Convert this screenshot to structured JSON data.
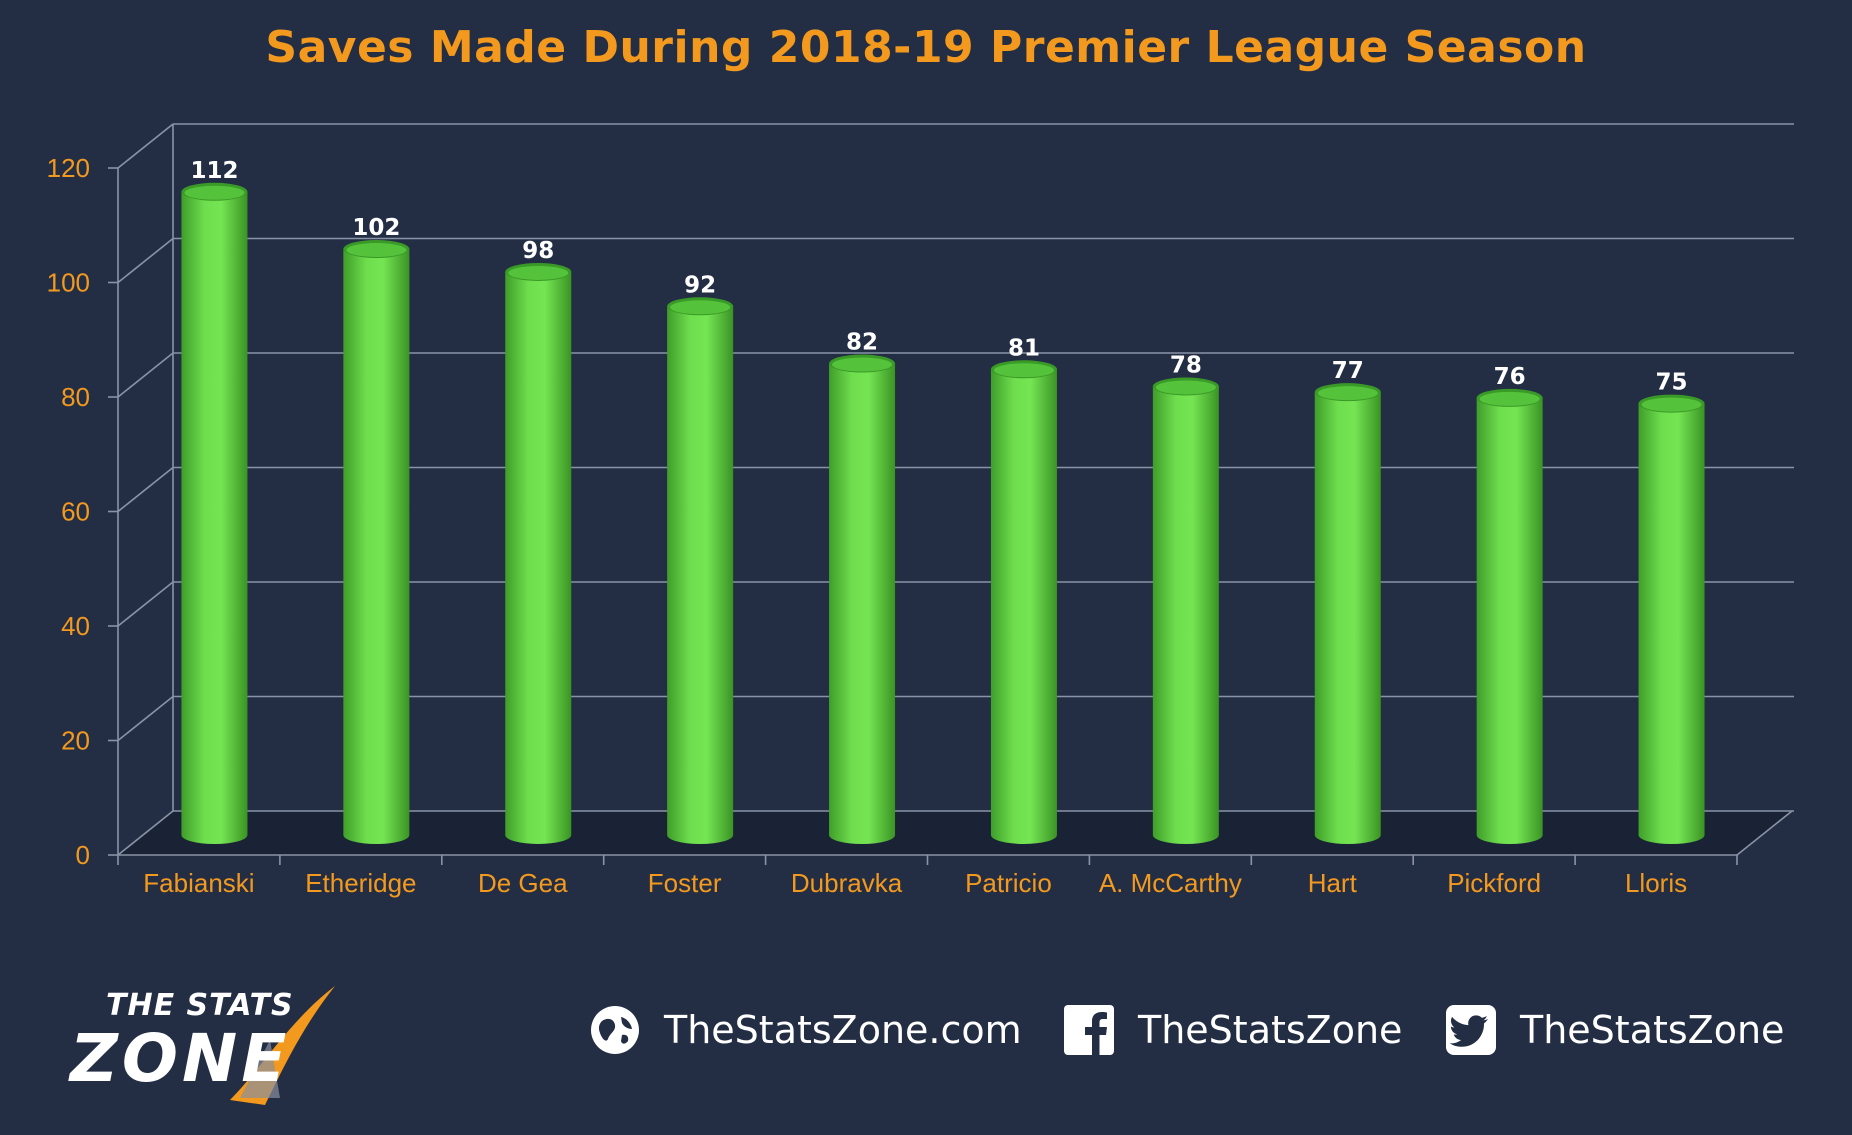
{
  "chart_data": {
    "type": "bar",
    "title": "Saves Made During 2018-19 Premier League Season",
    "categories": [
      "Fabianski",
      "Etheridge",
      "De Gea",
      "Foster",
      "Dubravka",
      "Patricio",
      "A. McCarthy",
      "Hart",
      "Pickford",
      "Lloris"
    ],
    "values": [
      112,
      102,
      98,
      92,
      82,
      81,
      78,
      77,
      76,
      75
    ],
    "data_labels": [
      "112",
      "102",
      "98",
      "92",
      "82",
      "81",
      "78",
      "77",
      "76",
      "75"
    ],
    "yticks": [
      "0",
      "20",
      "40",
      "60",
      "80",
      "100",
      "120"
    ],
    "ylim": [
      0,
      120
    ],
    "xlabel": "",
    "ylabel": "",
    "grid": true,
    "style": "3d-cylinder",
    "colors": {
      "background": "#232e45",
      "bar": "#66d648",
      "bar_dark": "#3a9a27",
      "bar_light": "#8ff06a",
      "tick_text": "#f39a1e",
      "title_text": "#f39a1e",
      "grid": "#8a93a6",
      "label_text": "#ffffff"
    }
  },
  "footer": {
    "logo_top": "THE STATS",
    "logo_bottom": "ZONE",
    "website_icon": "globe-icon",
    "website": "TheStatsZone.com",
    "facebook_icon": "facebook-icon",
    "facebook": "TheStatsZone",
    "twitter_icon": "twitter-icon",
    "twitter": "TheStatsZone"
  }
}
